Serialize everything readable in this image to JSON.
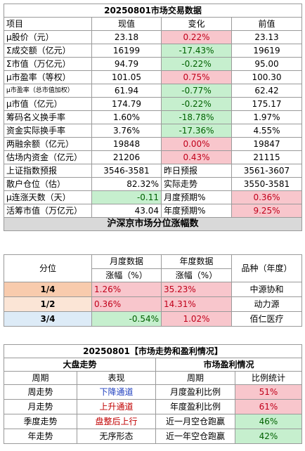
{
  "t1": {
    "title": "20250801市场交易数据",
    "headers": [
      "项目",
      "现值",
      "变化",
      "前值"
    ],
    "rows": [
      [
        "μ股价（元）",
        "23.18",
        "0.22%",
        "23.13"
      ],
      [
        "Σ成交额（亿元）",
        "16199",
        "-17.43%",
        "19619"
      ],
      [
        "Σ市值（万亿元）",
        "94.79",
        "-0.22%",
        "95.00"
      ],
      [
        "μ市盈率（等权）",
        "101.05",
        "0.75%",
        "100.30"
      ],
      [
        "μ市盈率（总市值加权）",
        "61.94",
        "-0.77%",
        "62.42"
      ],
      [
        "μ市值（亿元）",
        "174.79",
        "-0.22%",
        "175.17"
      ],
      [
        "筹码名义换手率",
        "1.60%",
        "-18.78%",
        "1.97%"
      ],
      [
        "资金实际换手率",
        "3.76%",
        "-17.36%",
        "4.55%"
      ],
      [
        "两融余额（亿元）",
        "19848",
        "0.00%",
        "19847"
      ],
      [
        "估场内资金（亿元）",
        "21206",
        "0.43%",
        "21115"
      ]
    ],
    "extra": [
      [
        "上证指数预报",
        "3546-3581",
        "昨日预报",
        "3561-3607"
      ],
      [
        "散户仓位（估）",
        "82.32%",
        "实际走势",
        "3550-3581"
      ],
      [
        "μ连涨天数（天）",
        "-0.11",
        "月度预期%",
        "0.36%"
      ],
      [
        "活筹市值（万亿元）",
        "43.04",
        "年度预期%",
        "9.25%"
      ]
    ]
  },
  "t2": {
    "title": "沪深京市场分位涨幅数",
    "col_quantile": "分位",
    "col_month": "月度数据",
    "col_year": "年度数据",
    "col_variety": "品种（年度）",
    "sub_month": "涨幅（%）",
    "sub_year": "涨幅（%）",
    "rows": [
      [
        "1/4",
        "1.26%",
        "35.23%",
        "中源协和"
      ],
      [
        "1/2",
        "0.36%",
        "14.31%",
        "动力源"
      ],
      [
        "3/4",
        "-0.54%",
        "1.02%",
        "佰仁医疗"
      ]
    ]
  },
  "t3": {
    "title": "20250801【市场走势和盈利情况】",
    "left_head": "大盘走势",
    "right_head": "市场盈利情况",
    "col_period": "周期",
    "col_show": "表现",
    "col_period2": "周期",
    "col_stat": "比例统计",
    "rows": [
      [
        "周走势",
        "下降通道",
        "月度盈利比例",
        "51%"
      ],
      [
        "月走势",
        "上升通道",
        "年度盈利比例",
        "61%"
      ],
      [
        "季度走势",
        "盘整后上行",
        "近一月空仓跑赢",
        "46%"
      ],
      [
        "年走势",
        "无序形态",
        "近一年空仓跑赢",
        "42%"
      ]
    ]
  },
  "colors": {
    "pink_bg": "#f8c6cc",
    "green_bg": "#c6efce",
    "gray_bg": "#d9d9d9",
    "q1_bg": "#f8cbad",
    "q2_bg": "#fbe5d6",
    "q3_bg": "#ddebf7"
  }
}
